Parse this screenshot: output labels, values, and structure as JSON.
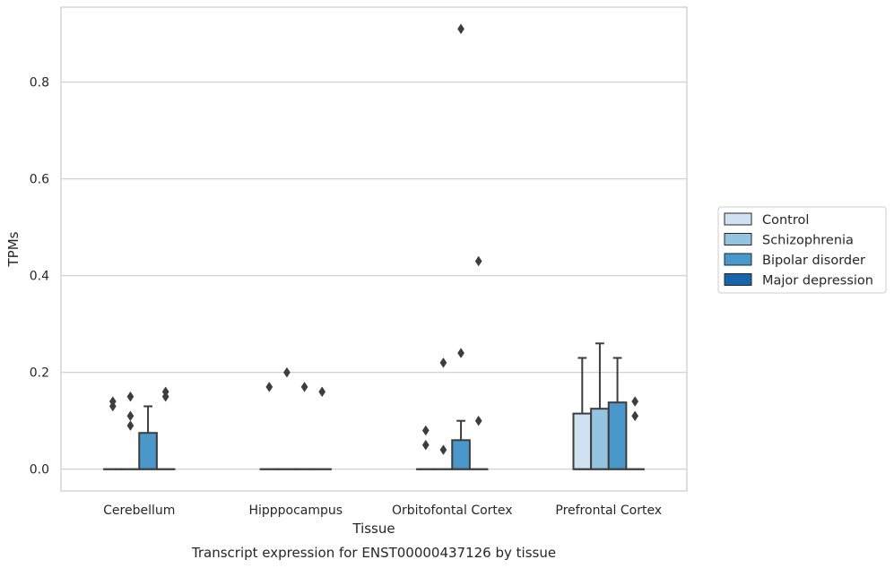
{
  "chart_data": {
    "type": "box",
    "title": "",
    "caption": "Transcript expression for ENST00000437126 by tissue",
    "xlabel": "Tissue",
    "ylabel": "TPMs",
    "ylim": [
      -0.045,
      0.955
    ],
    "yticks": [
      0.0,
      0.2,
      0.4,
      0.6,
      0.8
    ],
    "ytick_labels": [
      "0.0",
      "0.2",
      "0.4",
      "0.6",
      "0.8"
    ],
    "grid": "horizontal",
    "legend_placement": "right",
    "categories": [
      "Cerebellum",
      "Hipppocampus",
      "Orbitofontal Cortex",
      "Prefrontal Cortex"
    ],
    "series": [
      {
        "name": "Control",
        "color": "#d0e1f2"
      },
      {
        "name": "Schizophrenia",
        "color": "#94c4df"
      },
      {
        "name": "Bipolar disorder",
        "color": "#4a98c9"
      },
      {
        "name": "Major depression",
        "color": "#1764ab"
      }
    ],
    "boxes": [
      [
        {
          "q1": 0,
          "median": 0,
          "q3": 0,
          "whislo": 0,
          "whishi": 0,
          "fliers": [
            0.13,
            0.14
          ]
        },
        {
          "q1": 0,
          "median": 0,
          "q3": 0,
          "whislo": 0,
          "whishi": 0,
          "fliers": [
            0.09,
            0.11,
            0.15
          ]
        },
        {
          "q1": 0,
          "median": 0,
          "q3": 0.075,
          "whislo": 0,
          "whishi": 0.13,
          "fliers": []
        },
        {
          "q1": 0,
          "median": 0,
          "q3": 0,
          "whislo": 0,
          "whishi": 0,
          "fliers": [
            0.15,
            0.16
          ]
        }
      ],
      [
        {
          "q1": 0,
          "median": 0,
          "q3": 0,
          "whislo": 0,
          "whishi": 0,
          "fliers": [
            0.17
          ]
        },
        {
          "q1": 0,
          "median": 0,
          "q3": 0,
          "whislo": 0,
          "whishi": 0,
          "fliers": [
            0.2
          ]
        },
        {
          "q1": 0,
          "median": 0,
          "q3": 0,
          "whislo": 0,
          "whishi": 0,
          "fliers": [
            0.17
          ]
        },
        {
          "q1": 0,
          "median": 0,
          "q3": 0,
          "whislo": 0,
          "whishi": 0,
          "fliers": [
            0.16
          ]
        }
      ],
      [
        {
          "q1": 0,
          "median": 0,
          "q3": 0,
          "whislo": 0,
          "whishi": 0,
          "fliers": [
            0.05,
            0.08
          ]
        },
        {
          "q1": 0,
          "median": 0,
          "q3": 0,
          "whislo": 0,
          "whishi": 0,
          "fliers": [
            0.04,
            0.22
          ]
        },
        {
          "q1": 0,
          "median": 0,
          "q3": 0.06,
          "whislo": 0,
          "whishi": 0.1,
          "fliers": [
            0.24,
            0.91
          ]
        },
        {
          "q1": 0,
          "median": 0,
          "q3": 0,
          "whislo": 0,
          "whishi": 0,
          "fliers": [
            0.1,
            0.43
          ]
        }
      ],
      [
        {
          "q1": 0,
          "median": 0,
          "q3": 0.115,
          "whislo": 0,
          "whishi": 0.23,
          "fliers": []
        },
        {
          "q1": 0,
          "median": 0,
          "q3": 0.125,
          "whislo": 0,
          "whishi": 0.26,
          "fliers": []
        },
        {
          "q1": 0,
          "median": 0,
          "q3": 0.138,
          "whislo": 0,
          "whishi": 0.23,
          "fliers": []
        },
        {
          "q1": 0,
          "median": 0,
          "q3": 0,
          "whislo": 0,
          "whishi": 0,
          "fliers": [
            0.11,
            0.14
          ]
        }
      ]
    ]
  },
  "colors": {
    "background": "#ffffff",
    "grid": "#cccccc",
    "axes_edge": "#cccccc",
    "box_edge": "#3d3d3d",
    "text": "#262626"
  }
}
